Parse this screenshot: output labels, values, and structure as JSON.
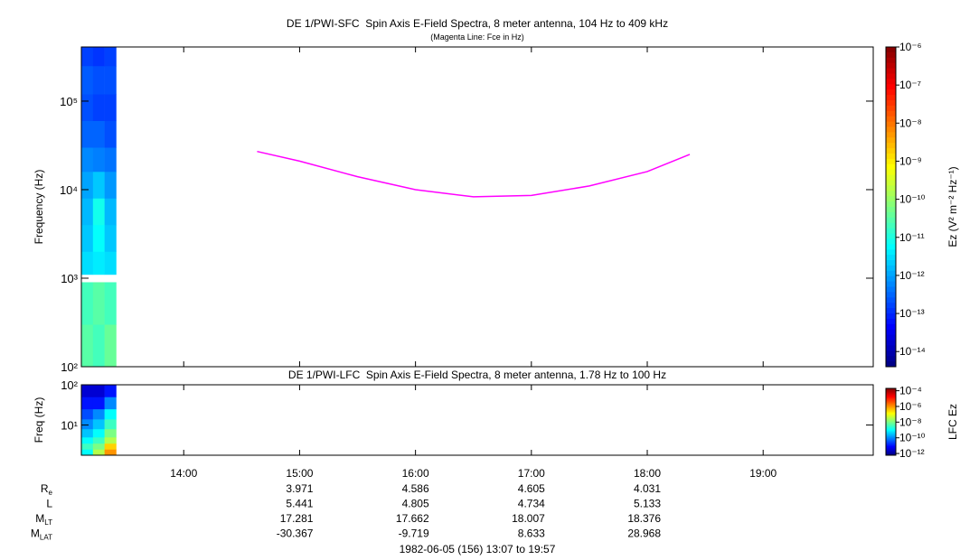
{
  "chart_data": [
    {
      "type": "spectrogram",
      "title": "DE 1/PWI-SFC  Spin Axis E-Field Spectra, 8 meter antenna, 104 Hz to 409 kHz",
      "subtitle": "(Magenta Line: Fce in Hz)",
      "y_label": "Frequency (Hz)",
      "y_log": true,
      "ylim": [
        100,
        409000
      ],
      "yticks": [
        {
          "value": 100,
          "label": "10²"
        },
        {
          "value": 1000,
          "label": "10³"
        },
        {
          "value": 10000,
          "label": "10⁴"
        },
        {
          "value": 100000,
          "label": "10⁵"
        }
      ],
      "xlim": [
        "13:07",
        "19:57"
      ],
      "xticks": [
        "14:00",
        "15:00",
        "16:00",
        "17:00",
        "18:00",
        "19:00"
      ],
      "xtick_labels": false,
      "xbins": [
        "13:07",
        "13:13",
        "13:19",
        "13:25"
      ],
      "ybins": [
        100,
        300,
        900,
        1100,
        2000,
        4000,
        8000,
        16000,
        30000,
        60000,
        120000,
        250000,
        409000
      ],
      "z": [
        [
          3e-11,
          2e-11,
          4e-11
        ],
        [
          2e-11,
          3e-11,
          2e-11
        ],
        [
          null,
          null,
          null
        ],
        [
          3e-12,
          4e-12,
          3e-12
        ],
        [
          2e-12,
          6e-12,
          2e-12
        ],
        [
          1.5e-12,
          8e-12,
          1.5e-12
        ],
        [
          1e-12,
          2e-12,
          8e-13
        ],
        [
          6e-13,
          5e-13,
          4e-13
        ],
        [
          3e-13,
          3e-13,
          2e-13
        ],
        [
          2e-13,
          1.5e-13,
          1.5e-13
        ],
        [
          2.5e-13,
          2e-13,
          2e-13
        ],
        [
          1.5e-13,
          1.2e-13,
          1.5e-13
        ]
      ],
      "colorbar_label": "Ez (V² m⁻² Hz⁻¹)",
      "zlim": [
        4e-15,
        1e-06
      ],
      "zticks": [
        {
          "value": 1e-14,
          "label": "10⁻¹⁴"
        },
        {
          "value": 1e-13,
          "label": "10⁻¹³"
        },
        {
          "value": 1e-12,
          "label": "10⁻¹²"
        },
        {
          "value": 1e-11,
          "label": "10⁻¹¹"
        },
        {
          "value": 1e-10,
          "label": "10⁻¹⁰"
        },
        {
          "value": 1e-09,
          "label": "10⁻⁹"
        },
        {
          "value": 1e-08,
          "label": "10⁻⁸"
        },
        {
          "value": 1e-07,
          "label": "10⁻⁷"
        },
        {
          "value": 1e-06,
          "label": "10⁻⁶"
        }
      ],
      "line": {
        "color": "#ff00ff",
        "x": [
          "14:38",
          "15:00",
          "15:30",
          "16:00",
          "16:30",
          "17:00",
          "17:30",
          "18:00",
          "18:22"
        ],
        "values": [
          27000,
          21000,
          14000,
          10000,
          8300,
          8600,
          11000,
          16000,
          25000
        ]
      }
    },
    {
      "type": "spectrogram",
      "title": "DE 1/PWI-LFC  Spin Axis E-Field Spectra, 8 meter antenna, 1.78 Hz to 100 Hz",
      "y_label": "Freq (Hz)",
      "y_log": true,
      "ylim": [
        1.78,
        100
      ],
      "yticks": [
        {
          "value": 10,
          "label": "10¹"
        },
        {
          "value": 100,
          "label": "10²"
        }
      ],
      "xlim": [
        "13:07",
        "19:57"
      ],
      "xticks": [
        "14:00",
        "15:00",
        "16:00",
        "17:00",
        "18:00",
        "19:00"
      ],
      "xtick_labels": true,
      "xbins": [
        "13:07",
        "13:13",
        "13:19",
        "13:25"
      ],
      "ybins": [
        1.78,
        2.5,
        3.5,
        5,
        8,
        14,
        25,
        50,
        100
      ],
      "z": [
        [
          1e-09,
          3e-08,
          1e-06
        ],
        [
          3e-09,
          1e-08,
          3e-07
        ],
        [
          1e-09,
          3e-09,
          3e-08
        ],
        [
          3e-10,
          1e-09,
          1e-08
        ],
        [
          1e-10,
          3e-10,
          3e-09
        ],
        [
          3e-11,
          1e-10,
          1e-09
        ],
        [
          1e-11,
          1e-11,
          1e-10
        ],
        [
          3e-12,
          3e-12,
          1e-11
        ]
      ],
      "colorbar_label": "LFC Ez",
      "zlim": [
        6e-13,
        0.0002
      ],
      "zticks": [
        {
          "value": 1e-12,
          "label": "10⁻¹²"
        },
        {
          "value": 1e-10,
          "label": "10⁻¹⁰"
        },
        {
          "value": 1e-08,
          "label": "10⁻⁸"
        },
        {
          "value": 1e-06,
          "label": "10⁻⁶"
        },
        {
          "value": 0.0001,
          "label": "10⁻⁴"
        }
      ]
    }
  ],
  "orbit": {
    "x": [
      "15:00",
      "16:00",
      "17:00",
      "18:00"
    ],
    "rows": [
      {
        "label": "R",
        "sub": "e",
        "values": [
          3.971,
          4.586,
          4.605,
          4.031
        ]
      },
      {
        "label": "L",
        "values": [
          5.441,
          4.805,
          4.734,
          5.133
        ]
      },
      {
        "label": "M",
        "sub": "LT",
        "values": [
          17.281,
          17.662,
          18.007,
          18.376
        ]
      },
      {
        "label": "M",
        "sub": "LAT",
        "values": [
          -30.367,
          -9.719,
          8.633,
          28.968
        ]
      }
    ]
  },
  "footer": "1982-06-05 (156) 13:07 to 19:57"
}
